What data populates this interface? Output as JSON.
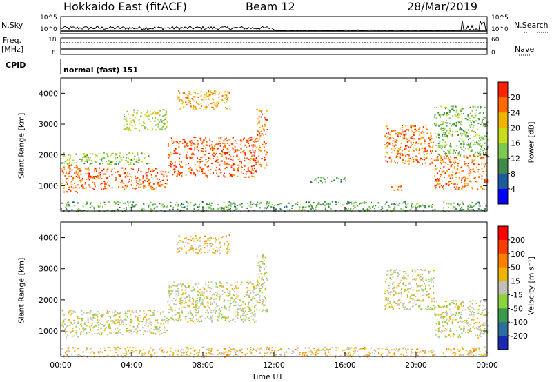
{
  "header": {
    "station": "Hokkaido East (fitACF)",
    "beam": "Beam 12",
    "date": "28/Mar/2019"
  },
  "noise_panel": {
    "left_label": "N.Sky",
    "right_label": "N.Search",
    "ticks_left": [
      "10^5",
      "10^0"
    ],
    "ticks_right": [
      "10^5",
      "10^0"
    ]
  },
  "freq_panel": {
    "left_label_1": "Freq.",
    "left_label_2": "[MHz]",
    "right_label": "Nave",
    "ticks_left": [
      "18",
      "8"
    ],
    "ticks_right": [
      "60",
      "0"
    ]
  },
  "cpid": {
    "label": "CPID",
    "value": "normal (fast) 151"
  },
  "chart_data": [
    {
      "type": "heatmap",
      "panel": "power",
      "ylabel": "Slant Range [km]",
      "xlabel": "Time UT",
      "yticks": [
        1000,
        2000,
        3000,
        4000
      ],
      "ylim": [
        180,
        4500
      ],
      "xticks": [
        "00:00",
        "04:00",
        "08:00",
        "12:00",
        "16:00",
        "20:00",
        "00:00"
      ],
      "xlim_hours": [
        0,
        24
      ],
      "colorbar": {
        "label": "Power [dB]",
        "ticks": [
          "4",
          "8",
          "12",
          "16",
          "20",
          "24",
          "28"
        ],
        "colors": [
          "#0000ff",
          "#1e5a9e",
          "#3f8a4a",
          "#7ec850",
          "#c8dc1e",
          "#f0b400",
          "#ff6a00",
          "#ff2200"
        ]
      },
      "regions": [
        {
          "t_start": 0.0,
          "t_end": 1.0,
          "r_min": 800,
          "r_max": 1700,
          "level": 0.85
        },
        {
          "t_start": 1.0,
          "t_end": 6.0,
          "r_min": 900,
          "r_max": 1600,
          "level": 0.9
        },
        {
          "t_start": 6.0,
          "t_end": 11.0,
          "r_min": 1300,
          "r_max": 2600,
          "level": 0.9
        },
        {
          "t_start": 11.0,
          "t_end": 11.6,
          "r_min": 1600,
          "r_max": 3500,
          "level": 0.85
        },
        {
          "t_start": 0.0,
          "t_end": 5.0,
          "r_min": 1700,
          "r_max": 2100,
          "level": 0.45
        },
        {
          "t_start": 6.5,
          "t_end": 9.5,
          "r_min": 3500,
          "r_max": 4100,
          "level": 0.75
        },
        {
          "t_start": 3.5,
          "t_end": 6.0,
          "r_min": 2800,
          "r_max": 3500,
          "level": 0.5
        },
        {
          "t_start": 18.2,
          "t_end": 21.0,
          "r_min": 1700,
          "r_max": 3000,
          "level": 0.85
        },
        {
          "t_start": 21.0,
          "t_end": 24.0,
          "r_min": 900,
          "r_max": 2000,
          "level": 0.85
        },
        {
          "t_start": 21.0,
          "t_end": 24.0,
          "r_min": 2000,
          "r_max": 3600,
          "level": 0.4
        },
        {
          "t_start": 14.0,
          "t_end": 16.0,
          "r_min": 1100,
          "r_max": 1300,
          "level": 0.3
        },
        {
          "t_start": 18.5,
          "t_end": 19.3,
          "r_min": 850,
          "r_max": 1050,
          "level": 0.8
        },
        {
          "t_start": 0.0,
          "t_end": 24.0,
          "r_min": 180,
          "r_max": 500,
          "level": 0.35
        }
      ]
    },
    {
      "type": "heatmap",
      "panel": "velocity",
      "ylabel": "Slant Range [km]",
      "xlabel": "Time UT",
      "yticks": [
        1000,
        2000,
        3000,
        4000
      ],
      "ylim": [
        180,
        4500
      ],
      "xticks": [
        "00:00",
        "04:00",
        "08:00",
        "12:00",
        "16:00",
        "20:00",
        "00:00"
      ],
      "xlim_hours": [
        0,
        24
      ],
      "colorbar": {
        "label": "Velocity [m s⁻¹]",
        "ticks": [
          "200",
          "100",
          "50",
          "15",
          "-15",
          "-50",
          "-100",
          "-200"
        ],
        "colors": [
          "#1a2ab0",
          "#2e6e9e",
          "#3a9a4a",
          "#8cd23c",
          "#c0c0b8",
          "#f0b400",
          "#ff8000",
          "#ff3c00",
          "#ff0000"
        ]
      },
      "regions": [
        {
          "t_start": 0.0,
          "t_end": 1.0,
          "r_min": 800,
          "r_max": 1700,
          "level": 0.5
        },
        {
          "t_start": 1.0,
          "t_end": 6.0,
          "r_min": 900,
          "r_max": 1700,
          "level": 0.5
        },
        {
          "t_start": 6.0,
          "t_end": 11.0,
          "r_min": 1300,
          "r_max": 2600,
          "level": 0.5
        },
        {
          "t_start": 11.0,
          "t_end": 11.6,
          "r_min": 1600,
          "r_max": 3500,
          "level": 0.5
        },
        {
          "t_start": 6.5,
          "t_end": 9.5,
          "r_min": 3500,
          "r_max": 4100,
          "level": 0.6
        },
        {
          "t_start": 18.2,
          "t_end": 21.0,
          "r_min": 1700,
          "r_max": 3000,
          "level": 0.5
        },
        {
          "t_start": 21.0,
          "t_end": 24.0,
          "r_min": 800,
          "r_max": 2000,
          "level": 0.5
        },
        {
          "t_start": 0.0,
          "t_end": 24.0,
          "r_min": 180,
          "r_max": 500,
          "level": 0.6
        }
      ]
    }
  ]
}
